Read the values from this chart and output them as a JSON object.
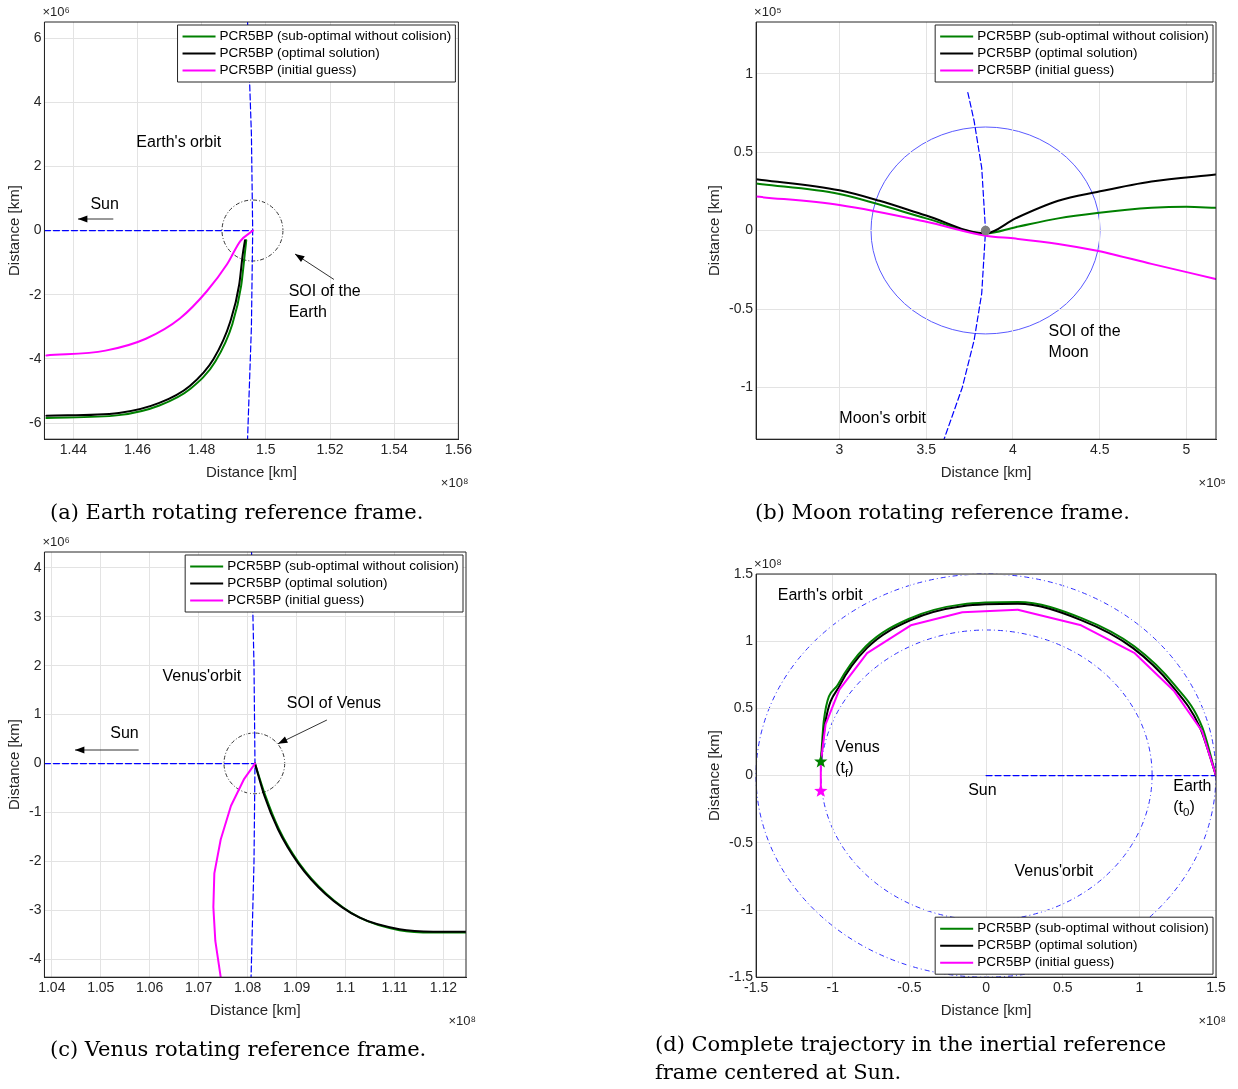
{
  "chart_data": [
    {
      "type": "line",
      "title": "(a) Earth rotating reference frame.",
      "xlabel": "Distance [km]",
      "ylabel": "Distance [km]",
      "xlim": [
        1.431,
        1.56
      ],
      "ylim": [
        -6.5,
        6.5
      ],
      "xticks": [
        1.44,
        1.46,
        1.48,
        1.5,
        1.52,
        1.54,
        1.56
      ],
      "yticks": [
        -6,
        -4,
        -2,
        0,
        2,
        4,
        6
      ],
      "grid": true,
      "legend": "top right",
      "annotations": [
        "×10⁶",
        "×10⁸",
        "Earth's orbit",
        "Sun",
        "SOI of the\nEarth"
      ],
      "series": [
        {
          "color": "#0000ff",
          "line_style": "dashed",
          "x": [
            1.4943,
            1.4955,
            1.4959,
            1.4955,
            1.4943
          ],
          "values": [
            6.5,
            3,
            0,
            -3,
            -6.5
          ]
        },
        {
          "color": "#0000ff",
          "line_style": "dashed",
          "x": [
            1.431,
            1.4959
          ],
          "values": [
            0,
            0
          ]
        },
        {
          "name": "PCR5BP (sub-optimal without colision)",
          "color": "#008000",
          "x": [
            1.4939,
            1.4934,
            1.4923,
            1.4896,
            1.4843,
            1.4766,
            1.4668,
            1.4542,
            1.4316
          ],
          "values": [
            -0.3,
            -0.76,
            -1.72,
            -2.9,
            -4.07,
            -4.92,
            -5.45,
            -5.75,
            -5.84
          ]
        },
        {
          "name": "PCR5BP (optimal solution)",
          "color": "#000000",
          "x": [
            1.4935,
            1.4928,
            1.4917,
            1.4889,
            1.4837,
            1.4763,
            1.4668,
            1.4542,
            1.4316
          ],
          "values": [
            -0.3,
            -0.74,
            -1.68,
            -2.84,
            -4.0,
            -4.84,
            -5.37,
            -5.68,
            -5.77
          ]
        },
        {
          "name": "PCR5BP (initial guess)",
          "color": "#ff00ff",
          "x": [
            1.496,
            1.4921,
            1.4879,
            1.4816,
            1.4732,
            1.4626,
            1.45,
            1.4316
          ],
          "values": [
            0,
            -0.32,
            -1.05,
            -1.89,
            -2.74,
            -3.37,
            -3.74,
            -3.89
          ]
        }
      ]
    },
    {
      "type": "line",
      "title": "(b) Moon rotating reference frame.",
      "xlabel": "Distance [km]",
      "ylabel": "Distance [km]",
      "xlim": [
        2.52,
        5.17
      ],
      "ylim": [
        -1.33,
        1.33
      ],
      "xticks": [
        3,
        3.5,
        4,
        4.5,
        5
      ],
      "yticks": [
        -1,
        -0.5,
        0,
        0.5,
        1
      ],
      "grid": true,
      "legend": "top right",
      "annotations": [
        "×10⁵",
        "×10⁵",
        "SOI of the\nMoon",
        "Moon's orbit"
      ],
      "series": [
        {
          "color": "#0000ff",
          "line_style": "dashed",
          "x": [
            3.74,
            3.776,
            3.82,
            3.842,
            3.82,
            3.776,
            3.708,
            3.603
          ],
          "values": [
            0.88,
            0.7,
            0.4,
            0,
            -0.4,
            -0.7,
            -1,
            -1.33
          ]
        },
        {
          "name": "PCR5BP (sub-optimal without colision)",
          "color": "#008000",
          "x": [
            2.52,
            3,
            3.5,
            3.842,
            4.015,
            4.261,
            4.485,
            4.798,
            5,
            5.168
          ],
          "values": [
            0.3,
            0.234,
            0.078,
            -0.018,
            0.022,
            0.078,
            0.112,
            0.145,
            0.152,
            0.145
          ]
        },
        {
          "name": "PCR5BP (optimal solution)",
          "color": "#000000",
          "x": [
            2.52,
            3,
            3.231,
            3.5,
            3.842,
            4.015,
            4.261,
            4.485,
            4.798,
            5.168
          ],
          "values": [
            0.328,
            0.257,
            0.19,
            0.096,
            -0.018,
            0.078,
            0.19,
            0.246,
            0.313,
            0.357
          ]
        },
        {
          "name": "PCR5BP (initial guess)",
          "color": "#ff00ff",
          "x": [
            2.52,
            3,
            3.5,
            3.842,
            4.015,
            4.261,
            4.485,
            4.798,
            5.168
          ],
          "values": [
            0.217,
            0.163,
            0.056,
            -0.033,
            -0.051,
            -0.085,
            -0.129,
            -0.212,
            -0.308
          ]
        },
        {
          "type": "scatter",
          "marker": "circle",
          "color": "#808080",
          "x": [
            3.842
          ],
          "values": [
            0
          ]
        }
      ]
    },
    {
      "type": "line",
      "title": "(c) Venus rotating reference frame.",
      "xlabel": "Distance [km]",
      "ylabel": "Distance [km]",
      "xlim": [
        1.0385,
        1.1246
      ],
      "ylim": [
        -4.36,
        4.32
      ],
      "xticks": [
        1.04,
        1.05,
        1.06,
        1.07,
        1.08,
        1.09,
        1.1,
        1.11,
        1.12
      ],
      "yticks": [
        -4,
        -3,
        -2,
        -1,
        0,
        1,
        2,
        3,
        4
      ],
      "grid": true,
      "legend": "top right",
      "annotations": [
        "×10⁶",
        "×10⁸",
        "Venus'orbit",
        "Sun",
        "SOI of Venus"
      ],
      "series": [
        {
          "color": "#0000ff",
          "line_style": "dashed",
          "x": [
            1.0808,
            1.0813,
            1.0815,
            1.0813,
            1.0807
          ],
          "values": [
            4.32,
            2,
            0,
            -2,
            -4.36
          ]
        },
        {
          "color": "#0000ff",
          "line_style": "dashed",
          "x": [
            1.0385,
            1.0815
          ],
          "values": [
            0,
            0
          ]
        },
        {
          "name": "PCR5BP (sub-optimal without colision)",
          "color": "#008000",
          "x": [
            1.0815,
            1.0836,
            1.0864,
            1.0905,
            1.0961,
            1.103,
            1.111,
            1.1179,
            1.1246
          ],
          "values": [
            0,
            -0.65,
            -1.34,
            -2.03,
            -2.66,
            -3.15,
            -3.4,
            -3.45,
            -3.45
          ]
        },
        {
          "name": "PCR5BP (optimal solution)",
          "color": "#000000",
          "x": [
            1.0815,
            1.0834,
            1.0862,
            1.0903,
            1.0959,
            1.1028,
            1.111,
            1.1179,
            1.1246
          ],
          "values": [
            0,
            -0.65,
            -1.34,
            -2.03,
            -2.66,
            -3.14,
            -3.38,
            -3.43,
            -3.43
          ]
        },
        {
          "name": "PCR5BP (initial guess)",
          "color": "#ff00ff",
          "x": [
            1.0815,
            1.0793,
            1.0766,
            1.0745,
            1.0732,
            1.073,
            1.0734,
            1.0745
          ],
          "values": [
            0,
            -0.31,
            -0.86,
            -1.55,
            -2.24,
            -2.93,
            -3.62,
            -4.36
          ]
        }
      ]
    },
    {
      "type": "line",
      "title": "(d) Complete trajectory in the inertial reference frame centered at Sun.",
      "xlabel": "Distance [km]",
      "ylabel": "Distance [km]",
      "xlim": [
        -1.5,
        1.5
      ],
      "ylim": [
        -1.5,
        1.5
      ],
      "xticks": [
        -1.5,
        -1,
        -0.5,
        0,
        0.5,
        1,
        1.5
      ],
      "yticks": [
        -1.5,
        -1,
        -0.5,
        0,
        0.5,
        1,
        1.5
      ],
      "grid": true,
      "legend": "bottom right",
      "annotations": [
        "×10⁸",
        "×10⁸",
        "Earth's orbit",
        "Venus\n(t$_{f}$)",
        "Sun",
        "Earth\n(t$_{0}$)",
        "Venus'orbit"
      ],
      "series": [
        {
          "color": "#0000ff",
          "line_style": "dashed",
          "x": [
            0,
            1.5
          ],
          "values": [
            0,
            0
          ]
        },
        {
          "name": "PCR5BP (sub-optimal without colision)",
          "color": "#008000",
          "x": [
            1.5,
            1.41,
            1.228,
            0.967,
            0.627,
            0.209,
            -0.157,
            -0.496,
            -0.784,
            -0.967,
            -1.058,
            -1.078
          ],
          "values": [
            0,
            0.36,
            0.676,
            0.962,
            1.17,
            1.292,
            1.274,
            1.17,
            0.962,
            0.676,
            0.413,
            0.103
          ]
        },
        {
          "name": "PCR5BP (optimal solution)",
          "color": "#000000",
          "x": [
            1.5,
            1.396,
            1.215,
            0.957,
            0.62,
            0.207,
            -0.155,
            -0.491,
            -0.776,
            -0.957,
            -1.047,
            -1.078
          ],
          "values": [
            0,
            0.356,
            0.666,
            0.95,
            1.157,
            1.278,
            1.26,
            1.157,
            0.95,
            0.666,
            0.408,
            0.103
          ]
        },
        {
          "name": "PCR5BP (initial guess)",
          "color": "#ff00ff",
          "x": [
            1.5,
            1.409,
            1.228,
            0.97,
            0.62,
            0.207,
            -0.155,
            -0.491,
            -0.776,
            -0.957,
            -1.047,
            -1.078,
            -1.078
          ],
          "values": [
            0,
            0.33,
            0.627,
            0.911,
            1.118,
            1.234,
            1.216,
            1.118,
            0.911,
            0.64,
            0.382,
            0.098,
            -0.116
          ]
        },
        {
          "type": "scatter",
          "marker": "star",
          "color": "#008000",
          "x": [
            -1.078
          ],
          "values": [
            0.103
          ]
        },
        {
          "type": "scatter",
          "marker": "star",
          "color": "#ff00ff",
          "x": [
            -1.078
          ],
          "values": [
            -0.116
          ]
        }
      ]
    }
  ]
}
